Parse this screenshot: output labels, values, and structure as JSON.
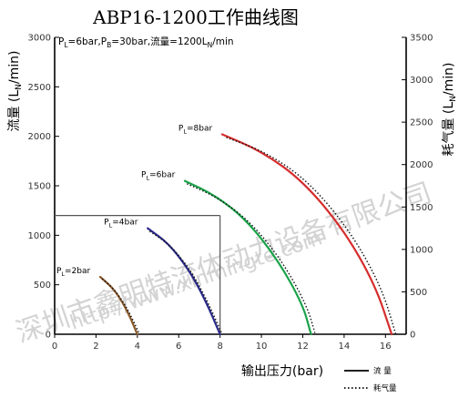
{
  "chart_data": {
    "type": "line",
    "title": "ABP16-1200工作曲线图",
    "subtitle": {
      "pl": "P",
      "pl_sub": "L",
      "pl_val": "=6bar,",
      "pb": "P",
      "pb_sub": "B",
      "pb_val": "=30bar,",
      "flow": "流量=1200L",
      "flow_sub": "N",
      "flow_unit": "/min"
    },
    "xlabel": "输出压力(bar)",
    "ylabel_left": {
      "main": "流量 (L",
      "sub": "N",
      "tail": "/min)"
    },
    "ylabel_right": {
      "main": "耗气量 (L",
      "sub": "N",
      "tail": "/min)"
    },
    "xlim": [
      0,
      17
    ],
    "xticks": [
      "0",
      "2",
      "4",
      "6",
      "8",
      "10",
      "12",
      "14",
      "16"
    ],
    "ylim_left": [
      0,
      3000
    ],
    "yticks_left": [
      "0",
      "500",
      "1000",
      "1500",
      "2000",
      "2500",
      "3000"
    ],
    "ylim_right": [
      0,
      3500
    ],
    "yticks_right": [
      "0",
      "500",
      "1000",
      "1500",
      "2000",
      "2500",
      "3000",
      "3500"
    ],
    "reference_point": {
      "x": 8,
      "y": 1200
    },
    "legend": [
      {
        "label": "流  量",
        "style": "solid"
      },
      {
        "label": "耗气量",
        "style": "dotted"
      }
    ],
    "series": [
      {
        "name": "PL=2bar",
        "label_main": "P",
        "label_sub": "L",
        "label_val": "=2bar",
        "color": "#8b5a2b",
        "flow": {
          "x": [
            2.2,
            2.8,
            3.3,
            3.7,
            4.0
          ],
          "y": [
            580,
            470,
            320,
            150,
            0
          ]
        },
        "air": {
          "x": [
            2.3,
            2.9,
            3.4,
            3.8,
            4.1
          ],
          "y": [
            560,
            450,
            300,
            140,
            0
          ]
        }
      },
      {
        "name": "PL=4bar",
        "label_main": "P",
        "label_sub": "L",
        "label_val": "=4bar",
        "color": "#2a2a8a",
        "flow": {
          "x": [
            4.5,
            5.5,
            6.5,
            7.3,
            8.0
          ],
          "y": [
            1070,
            920,
            650,
            340,
            0
          ]
        },
        "air": {
          "x": [
            4.6,
            5.6,
            6.6,
            7.4,
            8.1
          ],
          "y": [
            1040,
            900,
            640,
            330,
            0
          ]
        }
      },
      {
        "name": "PL=6bar",
        "label_main": "P",
        "label_sub": "L",
        "label_val": "=6bar",
        "color": "#1aa34a",
        "flow": {
          "x": [
            6.3,
            7.8,
            9.3,
            10.8,
            12.0,
            12.4
          ],
          "y": [
            1550,
            1400,
            1150,
            750,
            300,
            0
          ]
        },
        "air": {
          "x": [
            6.4,
            7.9,
            9.5,
            11.0,
            12.2,
            12.6
          ],
          "y": [
            1520,
            1380,
            1130,
            740,
            290,
            0
          ]
        }
      },
      {
        "name": "PL=8bar",
        "label_main": "P",
        "label_sub": "L",
        "label_val": "=8bar",
        "color": "#d62d2d",
        "flow": {
          "x": [
            8.1,
            10.0,
            12.0,
            14.0,
            15.5,
            16.3
          ],
          "y": [
            2020,
            1850,
            1550,
            1050,
            500,
            0
          ]
        },
        "air": {
          "x": [
            8.3,
            10.3,
            12.3,
            14.3,
            15.8,
            16.5
          ],
          "y": [
            1990,
            1830,
            1540,
            1040,
            480,
            0
          ]
        }
      }
    ]
  },
  "watermark": {
    "line1": "深圳市鑫明特流体动力设备有限公司",
    "line2": "http://www.xinmingte.com"
  }
}
